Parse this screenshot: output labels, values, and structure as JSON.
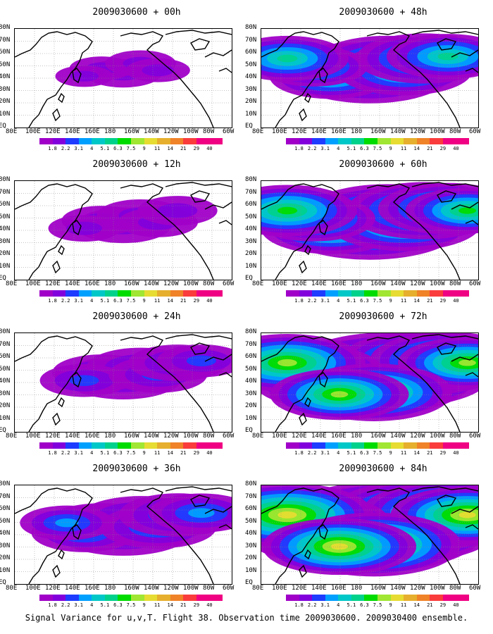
{
  "caption": "Signal Variance for u,v,T. Flight 38. Observation time 2009030600. 2009030400 ensemble.",
  "lat_labels": [
    "80N",
    "70N",
    "60N",
    "50N",
    "40N",
    "30N",
    "20N",
    "10N",
    "EQ"
  ],
  "lon_labels": [
    "80E",
    "100E",
    "120E",
    "140E",
    "160E",
    "180",
    "160W",
    "140W",
    "120W",
    "100W",
    "80W",
    "60W"
  ],
  "colorbar_labels": [
    "1.8",
    "2.2",
    "3.1",
    "4",
    "5.1",
    "6.3",
    "7.5",
    "9",
    "11",
    "14",
    "21",
    "29",
    "40"
  ],
  "colorbar_colors": [
    "#a000c8",
    "#8200dc",
    "#1e3cff",
    "#00a0ff",
    "#00c8c8",
    "#00d28c",
    "#00dc00",
    "#a0e632",
    "#e6dc32",
    "#e6af2d",
    "#f08228",
    "#fa3c3c",
    "#f00082"
  ],
  "panels": [
    {
      "id": "p00",
      "title": "2009030600 + 00h",
      "intensity": 0.5
    },
    {
      "id": "p12",
      "title": "2009030600 + 12h",
      "intensity": 1.0
    },
    {
      "id": "p24",
      "title": "2009030600 + 24h",
      "intensity": 1.6
    },
    {
      "id": "p36",
      "title": "2009030600 + 36h",
      "intensity": 2.2
    },
    {
      "id": "p48",
      "title": "2009030600 + 48h",
      "intensity": 2.8
    },
    {
      "id": "p60",
      "title": "2009030600 + 60h",
      "intensity": 3.4
    },
    {
      "id": "p72",
      "title": "2009030600 + 72h",
      "intensity": 4.0
    },
    {
      "id": "p84",
      "title": "2009030600 + 84h",
      "intensity": 4.6
    }
  ]
}
